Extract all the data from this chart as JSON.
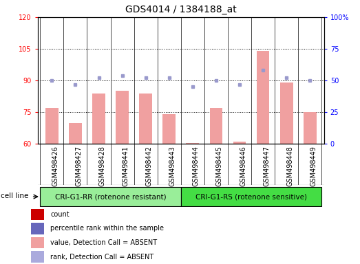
{
  "title": "GDS4014 / 1384188_at",
  "samples": [
    "GSM498426",
    "GSM498427",
    "GSM498428",
    "GSM498441",
    "GSM498442",
    "GSM498443",
    "GSM498444",
    "GSM498445",
    "GSM498446",
    "GSM498447",
    "GSM498448",
    "GSM498449"
  ],
  "bar_values": [
    77,
    70,
    84,
    85,
    84,
    74,
    60.5,
    77,
    61,
    104,
    89,
    75
  ],
  "bar_color": "#f0a0a0",
  "dot_values": [
    50,
    47,
    52,
    54,
    52,
    52,
    45,
    50,
    47,
    58,
    52,
    50
  ],
  "dot_color": "#9999cc",
  "ylim_left": [
    60,
    120
  ],
  "ylim_right": [
    0,
    100
  ],
  "yticks_left": [
    60,
    75,
    90,
    105,
    120
  ],
  "yticks_right": [
    0,
    25,
    50,
    75,
    100
  ],
  "ytick_labels_right": [
    "0",
    "25",
    "50",
    "75",
    "100%"
  ],
  "hlines": [
    75,
    90,
    105
  ],
  "group1_label": "CRI-G1-RR (rotenone resistant)",
  "group2_label": "CRI-G1-RS (rotenone sensitive)",
  "group1_count": 6,
  "group2_count": 6,
  "cell_line_label": "cell line",
  "legend_items": [
    {
      "label": "count",
      "color": "#cc0000"
    },
    {
      "label": "percentile rank within the sample",
      "color": "#6666bb"
    },
    {
      "label": "value, Detection Call = ABSENT",
      "color": "#f0a0a0"
    },
    {
      "label": "rank, Detection Call = ABSENT",
      "color": "#aaaadd"
    }
  ],
  "bar_width": 0.55,
  "xtick_bg_color": "#d8d8d8",
  "group1_color": "#99ee99",
  "group2_color": "#44dd44",
  "title_fontsize": 10,
  "tick_fontsize": 7,
  "label_fontsize": 7.5
}
